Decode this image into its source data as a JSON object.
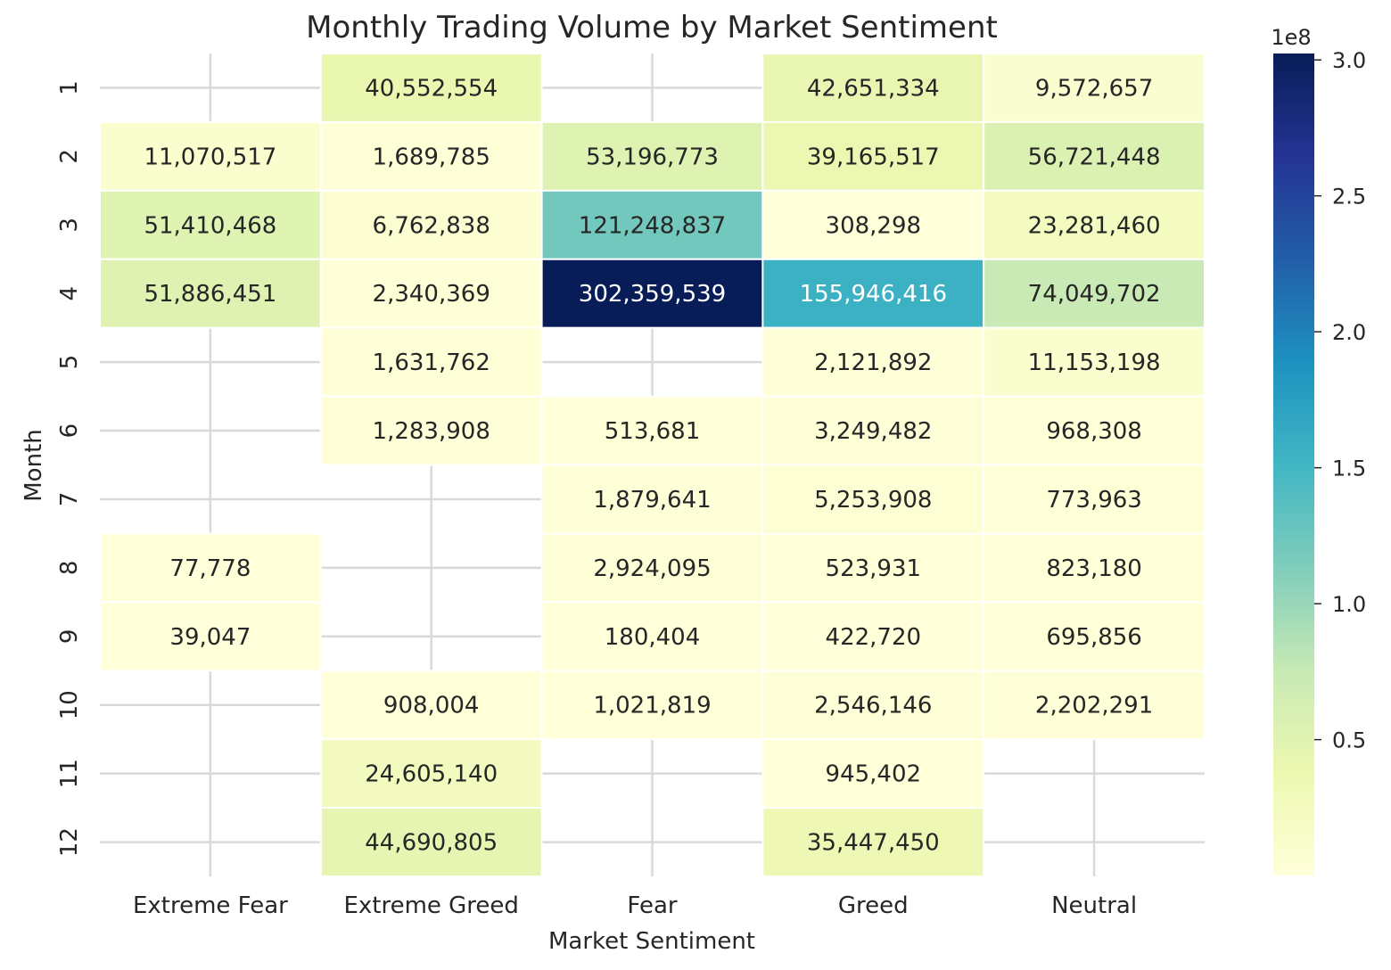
{
  "chart_data": {
    "type": "heatmap",
    "title": "Monthly Trading Volume by Market Sentiment",
    "xlabel": "Market Sentiment",
    "ylabel": "Month",
    "x_categories": [
      "Extreme Fear",
      "Extreme Greed",
      "Fear",
      "Greed",
      "Neutral"
    ],
    "y_categories": [
      "1",
      "2",
      "3",
      "4",
      "5",
      "6",
      "7",
      "8",
      "9",
      "10",
      "11",
      "12"
    ],
    "values": [
      [
        null,
        40552554,
        null,
        42651334,
        9572657
      ],
      [
        11070517,
        1689785,
        53196773,
        39165517,
        56721448
      ],
      [
        51410468,
        6762838,
        121248837,
        308298,
        23281460
      ],
      [
        51886451,
        2340369,
        302359539,
        155946416,
        74049702
      ],
      [
        null,
        1631762,
        null,
        2121892,
        11153198
      ],
      [
        null,
        1283908,
        513681,
        3249482,
        968308
      ],
      [
        null,
        null,
        1879641,
        5253908,
        773963
      ],
      [
        77778,
        null,
        2924095,
        523931,
        823180
      ],
      [
        39047,
        null,
        180404,
        422720,
        695856
      ],
      [
        null,
        908004,
        1021819,
        2546146,
        2202291
      ],
      [
        null,
        24605140,
        null,
        945402,
        null
      ],
      [
        null,
        44690805,
        null,
        35447450,
        null
      ]
    ],
    "cell_labels": [
      [
        "",
        "40,552,554",
        "",
        "42,651,334",
        "9,572,657"
      ],
      [
        "11,070,517",
        "1,689,785",
        "53,196,773",
        "39,165,517",
        "56,721,448"
      ],
      [
        "51,410,468",
        "6,762,838",
        "121,248,837",
        "308,298",
        "23,281,460"
      ],
      [
        "51,886,451",
        "2,340,369",
        "302,359,539",
        "155,946,416",
        "74,049,702"
      ],
      [
        "",
        "1,631,762",
        "",
        "2,121,892",
        "11,153,198"
      ],
      [
        "",
        "1,283,908",
        "513,681",
        "3,249,482",
        "968,308"
      ],
      [
        "",
        "",
        "1,879,641",
        "5,253,908",
        "773,963"
      ],
      [
        "77,778",
        "",
        "2,924,095",
        "523,931",
        "823,180"
      ],
      [
        "39,047",
        "",
        "180,404",
        "422,720",
        "695,856"
      ],
      [
        "",
        "908,004",
        "1,021,819",
        "2,546,146",
        "2,202,291"
      ],
      [
        "",
        "24,605,140",
        "",
        "945,402",
        ""
      ],
      [
        "",
        "44,690,805",
        "",
        "35,447,450",
        ""
      ]
    ],
    "colorbar": {
      "min": 39047,
      "max": 302359539,
      "ticks": [
        50000000,
        100000000,
        150000000,
        200000000,
        250000000,
        300000000
      ],
      "tick_labels": [
        "0.5",
        "1.0",
        "1.5",
        "2.0",
        "2.5",
        "3.0"
      ],
      "offset_label": "1e8",
      "colormap": "YlGnBu"
    },
    "grid": true,
    "colors": {
      "grid": "#d9d9d9",
      "text_dark": "#262626",
      "text_light": "#ffffff",
      "cell_border": "#ffffff"
    }
  }
}
